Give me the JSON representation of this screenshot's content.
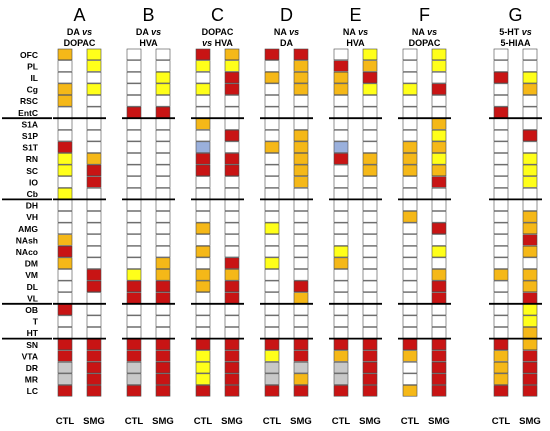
{
  "regions": [
    "OFC",
    "PL",
    "IL",
    "Cg",
    "RSC",
    "EntC",
    "S1A",
    "S1P",
    "S1T",
    "RN",
    "SC",
    "IO",
    "Cb",
    "DH",
    "VH",
    "AMG",
    "NAsh",
    "NAco",
    "DM",
    "VM",
    "DL",
    "VL",
    "OB",
    "T",
    "HT",
    "SN",
    "VTA",
    "DR",
    "MR",
    "LC"
  ],
  "groups": [
    "CTL",
    "SMG"
  ],
  "palette": {
    "W": "#ffffff",
    "Y": "#ffff1a",
    "O": "#f5b818",
    "R": "#c81414",
    "P": "#ff3cb4",
    "B": "#9ab0dc",
    "G": "#c8c8c8"
  },
  "panels": [
    {
      "letter": "A",
      "line1": "DA vs",
      "line2": "DOPAC",
      "cols": {
        "CTL": [
          "O",
          "W",
          "W",
          "O",
          "O",
          "W",
          "W",
          "W",
          "R",
          "Y",
          "Y",
          "W",
          "Y",
          "W",
          "W",
          "W",
          "O",
          "R",
          "O",
          "W",
          "W",
          "W",
          "R",
          "W",
          "W",
          "R",
          "R",
          "G",
          "G",
          "R"
        ],
        "SMG": [
          "Y",
          "Y",
          "W",
          "Y",
          "W",
          "W",
          "W",
          "W",
          "W",
          "O",
          "R",
          "R",
          "W",
          "W",
          "W",
          "W",
          "W",
          "W",
          "W",
          "R",
          "R",
          "W",
          "W",
          "W",
          "W",
          "R",
          "R",
          "R",
          "R",
          "R"
        ]
      }
    },
    {
      "letter": "B",
      "line1": "DA vs",
      "line2": "HVA",
      "cols": {
        "CTL": [
          "W",
          "W",
          "W",
          "W",
          "W",
          "R",
          "W",
          "W",
          "W",
          "W",
          "W",
          "W",
          "W",
          "W",
          "W",
          "W",
          "W",
          "W",
          "W",
          "Y",
          "R",
          "R",
          "W",
          "W",
          "W",
          "R",
          "R",
          "G",
          "G",
          "R"
        ],
        "SMG": [
          "W",
          "W",
          "Y",
          "Y",
          "W",
          "R",
          "W",
          "W",
          "W",
          "W",
          "W",
          "W",
          "W",
          "W",
          "W",
          "W",
          "W",
          "W",
          "O",
          "O",
          "R",
          "R",
          "W",
          "W",
          "W",
          "R",
          "R",
          "R",
          "R",
          "R"
        ]
      }
    },
    {
      "letter": "C",
      "line1": "DOPAC",
      "line2": "vs HVA",
      "cols": {
        "CTL": [
          "R",
          "Y",
          "W",
          "Y",
          "W",
          "W",
          "O",
          "W",
          "B",
          "R",
          "R",
          "W",
          "W",
          "W",
          "W",
          "O",
          "W",
          "O",
          "W",
          "O",
          "O",
          "W",
          "W",
          "W",
          "W",
          "R",
          "Y",
          "Y",
          "Y",
          "R"
        ],
        "SMG": [
          "O",
          "Y",
          "R",
          "R",
          "W",
          "W",
          "W",
          "R",
          "W",
          "R",
          "R",
          "W",
          "W",
          "W",
          "W",
          "W",
          "W",
          "W",
          "R",
          "O",
          "R",
          "R",
          "W",
          "W",
          "W",
          "R",
          "R",
          "R",
          "R",
          "R"
        ]
      }
    },
    {
      "letter": "D",
      "line1": "NA vs",
      "line2": "DA",
      "cols": {
        "CTL": [
          "R",
          "W",
          "O",
          "W",
          "W",
          "W",
          "W",
          "W",
          "O",
          "W",
          "W",
          "W",
          "W",
          "W",
          "W",
          "Y",
          "W",
          "W",
          "Y",
          "W",
          "W",
          "W",
          "W",
          "W",
          "W",
          "R",
          "Y",
          "G",
          "G",
          "R"
        ],
        "SMG": [
          "R",
          "O",
          "O",
          "O",
          "W",
          "W",
          "W",
          "O",
          "O",
          "O",
          "O",
          "O",
          "W",
          "W",
          "W",
          "W",
          "W",
          "W",
          "W",
          "W",
          "R",
          "O",
          "W",
          "W",
          "W",
          "R",
          "R",
          "G",
          "O",
          "R"
        ]
      }
    },
    {
      "letter": "E",
      "line1": "NA vs",
      "line2": "HVA",
      "cols": {
        "CTL": [
          "W",
          "R",
          "O",
          "O",
          "W",
          "W",
          "W",
          "W",
          "B",
          "R",
          "W",
          "W",
          "W",
          "W",
          "W",
          "W",
          "W",
          "Y",
          "O",
          "W",
          "W",
          "W",
          "W",
          "W",
          "W",
          "R",
          "O",
          "G",
          "G",
          "R"
        ],
        "SMG": [
          "Y",
          "O",
          "R",
          "Y",
          "W",
          "W",
          "W",
          "W",
          "W",
          "O",
          "O",
          "W",
          "W",
          "W",
          "W",
          "W",
          "W",
          "W",
          "W",
          "W",
          "W",
          "W",
          "W",
          "W",
          "W",
          "R",
          "R",
          "R",
          "R",
          "R"
        ]
      }
    },
    {
      "letter": "F",
      "line1": "NA vs",
      "line2": "DOPAC",
      "cols": {
        "CTL": [
          "W",
          "W",
          "W",
          "Y",
          "W",
          "W",
          "W",
          "W",
          "O",
          "O",
          "O",
          "W",
          "W",
          "W",
          "O",
          "W",
          "W",
          "W",
          "W",
          "W",
          "W",
          "W",
          "W",
          "W",
          "W",
          "R",
          "O",
          "W",
          "W",
          "O"
        ],
        "SMG": [
          "Y",
          "Y",
          "W",
          "R",
          "W",
          "W",
          "O",
          "Y",
          "O",
          "Y",
          "O",
          "R",
          "W",
          "W",
          "W",
          "R",
          "W",
          "Y",
          "W",
          "O",
          "R",
          "R",
          "W",
          "W",
          "W",
          "R",
          "R",
          "R",
          "R",
          "R"
        ]
      }
    },
    {
      "letter": "G",
      "line1": "5-HT vs",
      "line2": "5-HIAA",
      "cols": {
        "CTL": [
          "W",
          "W",
          "R",
          "W",
          "W",
          "R",
          "W",
          "W",
          "W",
          "W",
          "W",
          "W",
          "W",
          "W",
          "W",
          "W",
          "W",
          "W",
          "W",
          "O",
          "W",
          "W",
          "W",
          "W",
          "W",
          "R",
          "O",
          "O",
          "O",
          "R"
        ],
        "SMG": [
          "W",
          "W",
          "Y",
          "O",
          "W",
          "W",
          "W",
          "R",
          "W",
          "Y",
          "Y",
          "Y",
          "W",
          "W",
          "O",
          "O",
          "R",
          "O",
          "W",
          "O",
          "O",
          "R",
          "Y",
          "Y",
          "O",
          "O",
          "R",
          "R",
          "R",
          "R"
        ]
      }
    }
  ],
  "separators_after": [
    "EntC",
    "Cb",
    "VL",
    "HT"
  ]
}
